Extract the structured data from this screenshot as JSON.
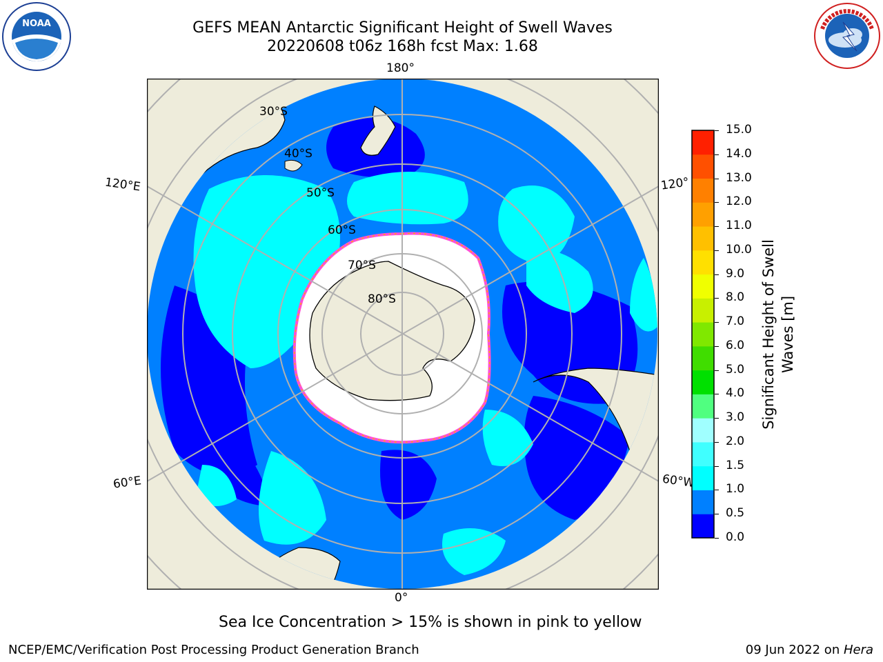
{
  "header": {
    "title_line1": "GEFS MEAN Antarctic Significant Height of Swell Waves",
    "title_line2": "20220608 t06z 168h fcst   Max: 1.68"
  },
  "logos": {
    "noaa_text": "NOAA",
    "noaa_ring": "NATIONAL OCEANIC AND ATMOSPHERIC ADMINISTRATION · U.S. DEPARTMENT OF COMMERCE",
    "nws_ring": "NATIONAL WEATHER SERVICE"
  },
  "map": {
    "lon_labels": {
      "top": "180°",
      "bottom": "0°",
      "left_upper": "120°E",
      "left_lower": "60°E",
      "right_upper": "120°",
      "right_lower": "60°W"
    },
    "lat_labels": [
      "30°S",
      "40°S",
      "50°S",
      "60°S",
      "70°S",
      "80°S"
    ],
    "colors": {
      "land": "#eeecdb",
      "ice": "#ffffff",
      "ice_edge": [
        "#ff4fd8",
        "#ffb300",
        "#ffe000"
      ],
      "grid": "#b0b0b0"
    }
  },
  "colorbar": {
    "label_line1": "Significant Height of Swell",
    "label_line2": "Waves [m]",
    "ticks": [
      "0.0",
      "0.5",
      "1.0",
      "1.5",
      "2.0",
      "3.0",
      "4.0",
      "5.0",
      "6.0",
      "7.0",
      "8.0",
      "9.0",
      "10.0",
      "11.0",
      "12.0",
      "13.0",
      "14.0",
      "15.0"
    ],
    "colors": [
      "#0000ff",
      "#0080ff",
      "#00ffff",
      "#40ffff",
      "#a0ffff",
      "#50ff80",
      "#00e000",
      "#40dd00",
      "#80e800",
      "#c8f000",
      "#f0ff00",
      "#ffe000",
      "#ffc000",
      "#ffa000",
      "#ff8000",
      "#ff5000",
      "#ff2000"
    ]
  },
  "caption": "Sea Ice Concentration > 15% is shown in pink to yellow",
  "footer": {
    "left": "NCEP/EMC/Verification Post Processing Product Generation Branch",
    "right_prefix": "09 Jun 2022 on ",
    "right_host": "Hera"
  }
}
